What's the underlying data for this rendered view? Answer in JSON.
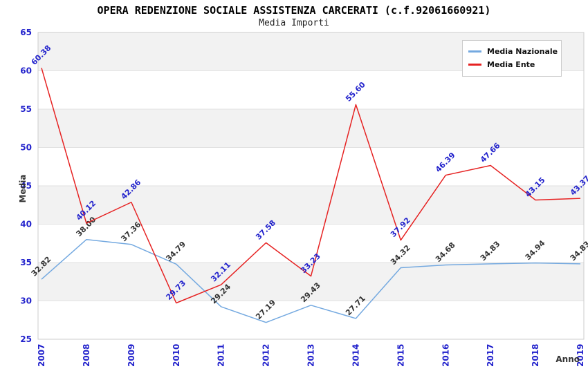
{
  "header": {
    "title": "OPERA REDENZIONE SOCIALE ASSISTENZA CARCERATI (c.f.92061660921)",
    "subtitle": "Media Importi"
  },
  "colors": {
    "axis_tick": "#2222cc",
    "band_gray": "#f2f2f2",
    "band_white": "#ffffff",
    "grid_line": "#e2e2e2",
    "plot_border": "#cccccc",
    "label_dark": "#333333",
    "label_blue": "#2222cc"
  },
  "chart_data": {
    "type": "line",
    "title": "OPERA REDENZIONE SOCIALE ASSISTENZA CARCERATI (c.f.92061660921)",
    "subtitle": "Media Importi",
    "xlabel": "Anno",
    "ylabel": "Media",
    "ylim": [
      25,
      65
    ],
    "ytick_step": 5,
    "grid": true,
    "legend_position": "top-right",
    "categories": [
      "2007",
      "2008",
      "2009",
      "2010",
      "2011",
      "2012",
      "2013",
      "2014",
      "2015",
      "2016",
      "2017",
      "2018",
      "2019"
    ],
    "series": [
      {
        "name": "Media Nazionale",
        "color": "#74a9e0",
        "label_color": "#333333",
        "values": [
          32.82,
          38.0,
          37.36,
          34.79,
          29.24,
          27.19,
          29.43,
          27.71,
          34.32,
          34.68,
          34.83,
          34.94,
          34.83
        ]
      },
      {
        "name": "Media Ente",
        "color": "#e62222",
        "label_color": "#2222cc",
        "values": [
          60.38,
          40.12,
          42.86,
          29.73,
          32.11,
          37.58,
          33.23,
          55.6,
          37.92,
          46.39,
          47.66,
          43.15,
          43.37
        ]
      }
    ]
  }
}
